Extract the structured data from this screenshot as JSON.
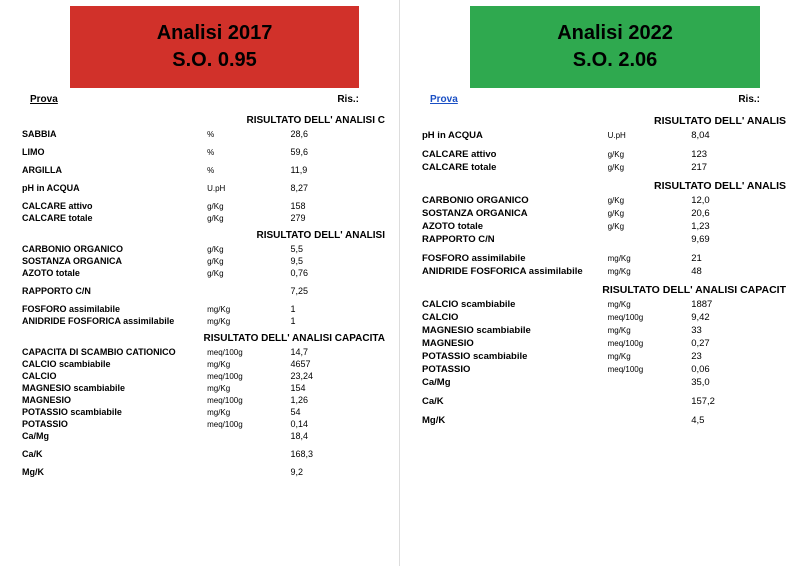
{
  "colors": {
    "header_red_bg": "#d1312a",
    "header_green_bg": "#2fa94f",
    "header_text": "#000000",
    "page_bg": "#ffffff",
    "link_blue": "#1a4fc4"
  },
  "left": {
    "header_line1": "Analisi 2017",
    "header_line2": "S.O. 0.95",
    "prova": "Prova",
    "ris": "Ris",
    "sections": [
      {
        "title": "RISULTATO DELL' ANALISI C",
        "rows": [
          {
            "name": "SABBIA",
            "unit": "%",
            "val": "28,6",
            "bold": true
          },
          {
            "name": "LIMO",
            "unit": "%",
            "val": "59,6",
            "bold": true
          },
          {
            "name": "ARGILLA",
            "unit": "%",
            "val": "11,9",
            "bold": true
          },
          {
            "name": "pH in ACQUA",
            "unit": "U.pH",
            "val": "8,27",
            "bold": true
          },
          {
            "name": "CALCARE attivo",
            "unit": "g/Kg",
            "val": "158",
            "bold": true
          },
          {
            "name": "CALCARE totale",
            "unit": "g/Kg",
            "val": "279",
            "bold": true
          }
        ]
      },
      {
        "title": "RISULTATO DELL' ANALISI",
        "rows": [
          {
            "name": "CARBONIO ORGANICO",
            "unit": "g/Kg",
            "val": "5,5",
            "bold": true
          },
          {
            "name": "SOSTANZA ORGANICA",
            "unit": "g/Kg",
            "val": "9,5",
            "bold": true
          },
          {
            "name": "AZOTO totale",
            "unit": "g/Kg",
            "val": "0,76",
            "bold": true
          },
          {
            "name": "RAPPORTO C/N",
            "unit": "",
            "val": "7,25",
            "bold": true
          },
          {
            "name": "FOSFORO assimilabile",
            "unit": "mg/Kg",
            "val": "1",
            "bold": true
          },
          {
            "name": "ANIDRIDE FOSFORICA assimilabile",
            "unit": "mg/Kg",
            "val": "1",
            "bold": true
          }
        ]
      },
      {
        "title": "RISULTATO DELL' ANALISI CAPACITA",
        "rows": [
          {
            "name": "CAPACITA DI SCAMBIO CATIONICO",
            "unit": "meq/100g",
            "val": "14,7",
            "bold": true
          },
          {
            "name": "CALCIO scambiabile",
            "unit": "mg/Kg",
            "val": "4657",
            "bold": true
          },
          {
            "name": "CALCIO",
            "unit": "meq/100g",
            "val": "23,24",
            "bold": true
          },
          {
            "name": "MAGNESIO scambiabile",
            "unit": "mg/Kg",
            "val": "154",
            "bold": true
          },
          {
            "name": "MAGNESIO",
            "unit": "meq/100g",
            "val": "1,26",
            "bold": true
          },
          {
            "name": "POTASSIO scambiabile",
            "unit": "mg/Kg",
            "val": "54",
            "bold": true
          },
          {
            "name": "POTASSIO",
            "unit": "meq/100g",
            "val": "0,14",
            "bold": true
          },
          {
            "name": "Ca/Mg",
            "unit": "",
            "val": "18,4",
            "bold": true
          },
          {
            "name": "Ca/K",
            "unit": "",
            "val": "168,3",
            "bold": true
          },
          {
            "name": "Mg/K",
            "unit": "",
            "val": "9,2",
            "bold": true
          }
        ]
      }
    ]
  },
  "right": {
    "header_line1": "Analisi 2022",
    "header_line2": "S.O. 2.06",
    "prova": "Prova",
    "ris": "Ris",
    "sections": [
      {
        "title": "RISULTATO DELL' ANALIS",
        "rows": [
          {
            "name": "pH in ACQUA",
            "unit": "U.pH",
            "val": "8,04",
            "bold": true
          },
          {
            "name": "CALCARE attivo",
            "unit": "g/Kg",
            "val": "123",
            "bold": true
          },
          {
            "name": "CALCARE totale",
            "unit": "g/Kg",
            "val": "217",
            "bold": true
          }
        ]
      },
      {
        "title": "RISULTATO DELL' ANALIS",
        "rows": [
          {
            "name": "CARBONIO ORGANICO",
            "unit": "g/Kg",
            "val": "12,0",
            "bold": true
          },
          {
            "name": "SOSTANZA ORGANICA",
            "unit": "g/Kg",
            "val": "20,6",
            "bold": true
          },
          {
            "name": "AZOTO totale",
            "unit": "g/Kg",
            "val": "1,23",
            "bold": true
          },
          {
            "name": "RAPPORTO C/N",
            "unit": "",
            "val": "9,69",
            "bold": true
          },
          {
            "name": "FOSFORO assimilabile",
            "unit": "mg/Kg",
            "val": "21",
            "bold": true
          },
          {
            "name": "ANIDRIDE FOSFORICA assimilabile",
            "unit": "mg/Kg",
            "val": "48",
            "bold": true
          }
        ]
      },
      {
        "title": "RISULTATO DELL' ANALISI CAPACIT",
        "rows": [
          {
            "name": "CALCIO scambiabile",
            "unit": "mg/Kg",
            "val": "1887",
            "bold": true
          },
          {
            "name": "CALCIO",
            "unit": "meq/100g",
            "val": "9,42",
            "bold": true
          },
          {
            "name": "MAGNESIO scambiabile",
            "unit": "mg/Kg",
            "val": "33",
            "bold": true
          },
          {
            "name": "MAGNESIO",
            "unit": "meq/100g",
            "val": "0,27",
            "bold": true
          },
          {
            "name": "POTASSIO scambiabile",
            "unit": "mg/Kg",
            "val": "23",
            "bold": true
          },
          {
            "name": "POTASSIO",
            "unit": "meq/100g",
            "val": "0,06",
            "bold": true
          },
          {
            "name": "Ca/Mg",
            "unit": "",
            "val": "35,0",
            "bold": true
          },
          {
            "name": "Ca/K",
            "unit": "",
            "val": "157,2",
            "bold": true
          },
          {
            "name": "Mg/K",
            "unit": "",
            "val": "4,5",
            "bold": true
          }
        ]
      }
    ]
  }
}
